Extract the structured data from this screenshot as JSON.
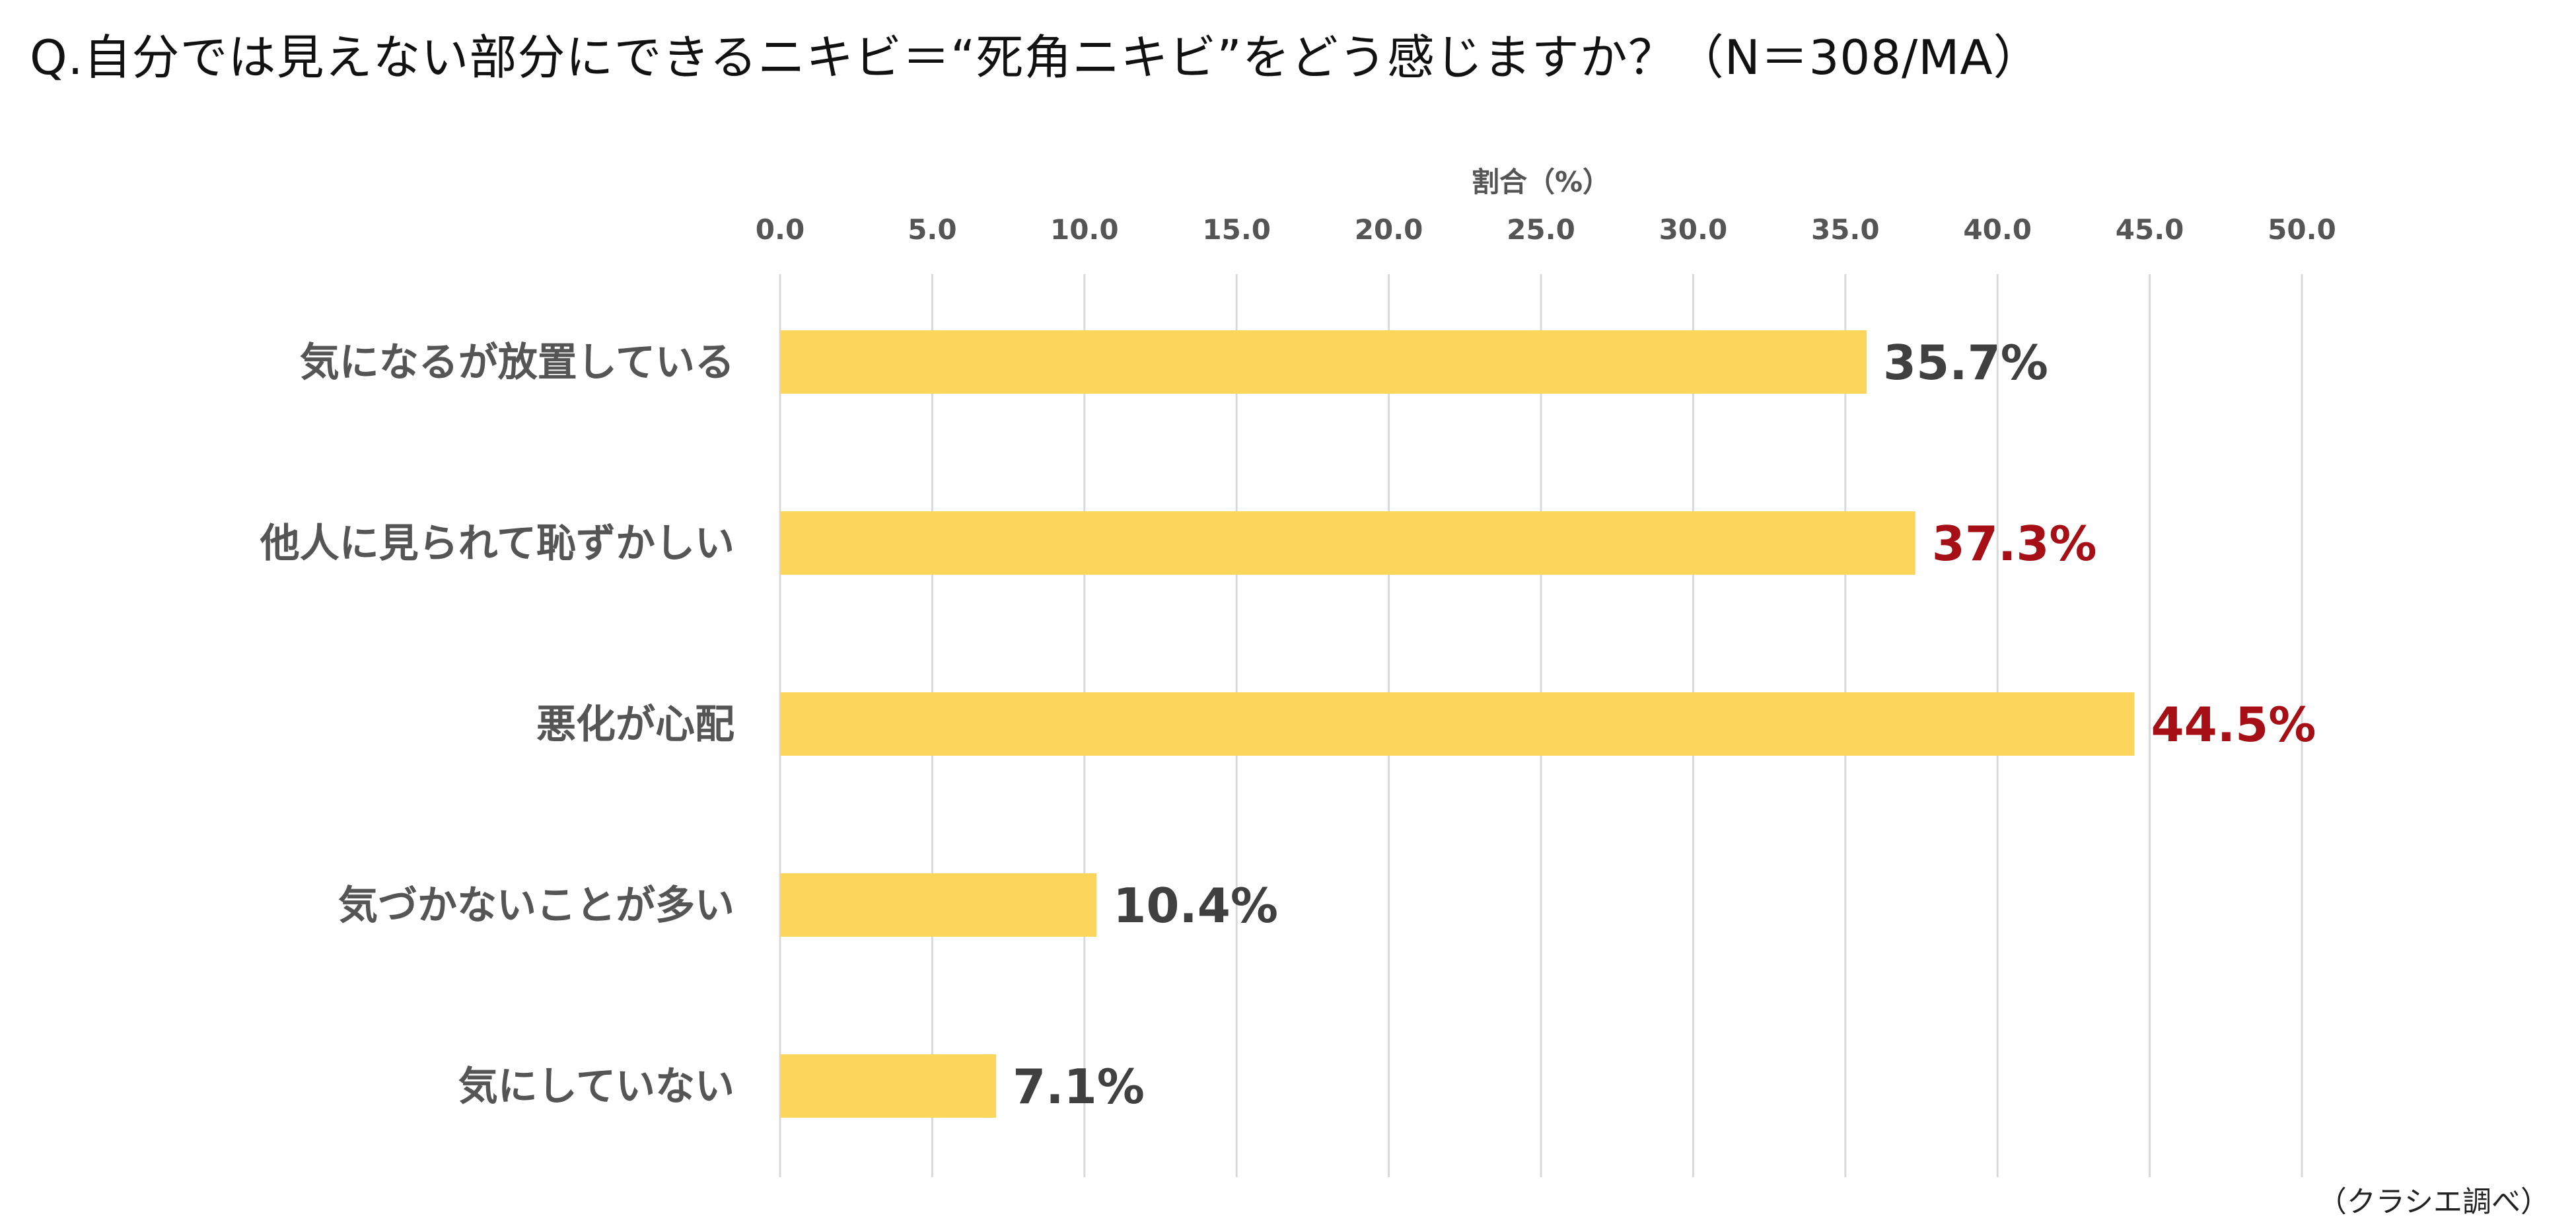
{
  "question": "Q.自分では見えない部分にできるニキビ＝“死角ニキビ”をどう感じますか？（N＝308/MA）",
  "source": "（クラシエ調べ）",
  "colors": {
    "bar": "#FCD55B",
    "grid": "#D9D9D9",
    "label_default": "#404040",
    "label_highlight": "#A50F15"
  },
  "chart_data": {
    "type": "bar",
    "orientation": "horizontal",
    "xlabel": "割合（%）",
    "xlim": [
      0,
      50
    ],
    "ticks": [
      0,
      5,
      10,
      15,
      20,
      25,
      30,
      35,
      40,
      45,
      50
    ],
    "tick_labels": [
      "0.0",
      "5.0",
      "10.0",
      "15.0",
      "20.0",
      "25.0",
      "30.0",
      "35.0",
      "40.0",
      "45.0",
      "50.0"
    ],
    "x_axis_position": "top",
    "grid": true,
    "categories": [
      "気になるが放置している",
      "他人に見られて恥ずかしい",
      "悪化が心配",
      "気づかないことが多い",
      "気にしていない"
    ],
    "values": [
      35.7,
      37.3,
      44.5,
      10.4,
      7.1
    ],
    "data_labels": [
      "35.7%",
      "37.3%",
      "44.5%",
      "10.4%",
      "7.1%"
    ],
    "highlighted": [
      false,
      true,
      true,
      false,
      false
    ]
  }
}
